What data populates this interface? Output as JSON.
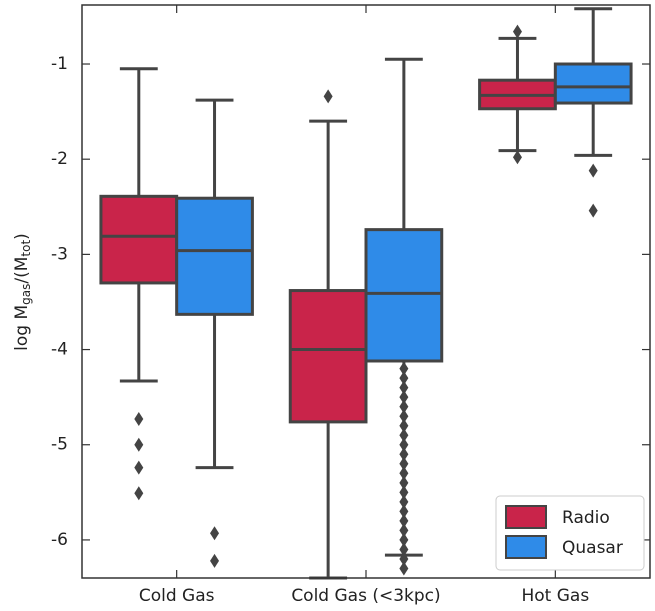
{
  "chart_data": {
    "type": "box",
    "y_label": [
      {
        "text": "log M"
      },
      {
        "text": "gas",
        "sub": true
      },
      {
        "text": "/(M"
      },
      {
        "text": "tot",
        "sub": true
      },
      {
        "text": ")"
      }
    ],
    "categories": [
      "Cold Gas",
      "Cold Gas (<3kpc)",
      "Hot Gas"
    ],
    "ylim": [
      -6.4,
      -0.38
    ],
    "yticks": [
      -6,
      -5,
      -4,
      -3,
      -2,
      -1
    ],
    "legend": "lower right",
    "series": [
      {
        "name": "Radio",
        "color": "#c9244a",
        "values": [
          {
            "whislo": -4.33,
            "q1": -3.3,
            "med": -2.81,
            "q3": -2.39,
            "whishi": -1.05,
            "fliers": [
              -4.73,
              -5.0,
              -5.24,
              -5.51
            ]
          },
          {
            "whislo": -6.4,
            "q1": -4.76,
            "med": -4.0,
            "q3": -3.38,
            "whishi": -1.6,
            "fliers": [
              -1.34
            ]
          },
          {
            "whislo": -1.91,
            "q1": -1.47,
            "med": -1.33,
            "q3": -1.17,
            "whishi": -0.73,
            "fliers": [
              -0.66,
              -1.98
            ]
          }
        ]
      },
      {
        "name": "Quasar",
        "color": "#2f8be8",
        "values": [
          {
            "whislo": -5.24,
            "q1": -3.63,
            "med": -2.96,
            "q3": -2.41,
            "whishi": -1.38,
            "fliers": [
              -5.93,
              -6.22
            ]
          },
          {
            "whislo": -6.16,
            "q1": -4.12,
            "med": -3.41,
            "q3": -2.74,
            "whishi": -0.95,
            "fliers": [
              -4.2,
              -4.3,
              -4.4,
              -4.5,
              -4.6,
              -4.7,
              -4.8,
              -4.9,
              -5.0,
              -5.1,
              -5.2,
              -5.3,
              -5.4,
              -5.5,
              -5.6,
              -5.7,
              -5.8,
              -5.9,
              -6.0,
              -6.1,
              -6.2,
              -6.3
            ]
          },
          {
            "whislo": -1.96,
            "q1": -1.41,
            "med": -1.24,
            "q3": -1.0,
            "whishi": -0.42,
            "fliers": [
              -2.12,
              -2.54
            ]
          }
        ]
      }
    ]
  }
}
